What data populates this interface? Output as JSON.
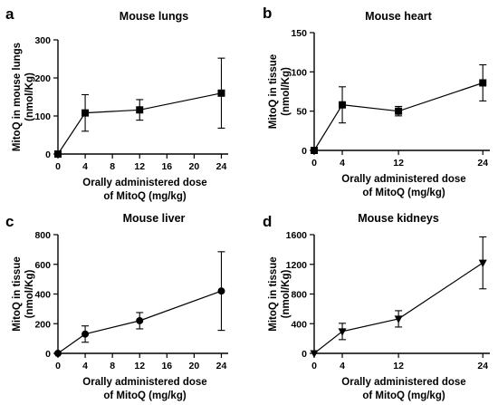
{
  "chart_data": [
    {
      "type": "line",
      "letter": "a",
      "title": "Mouse lungs",
      "ylabel": [
        "MitoQ in mouse lungs",
        "(nmol/Kg)"
      ],
      "xlabel": [
        "Orally administered dose",
        "of MitoQ (mg/kg)"
      ],
      "x": [
        0,
        4,
        12,
        24
      ],
      "y": [
        0,
        108,
        116,
        160
      ],
      "err": [
        0,
        48,
        27,
        92
      ],
      "marker": "square",
      "xlim": [
        0,
        25
      ],
      "xticks": [
        0,
        4,
        8,
        12,
        16,
        20,
        24
      ],
      "ylim": [
        0,
        300
      ],
      "yticks": [
        0,
        100,
        200,
        300
      ]
    },
    {
      "type": "line",
      "letter": "b",
      "title": "Mouse heart",
      "ylabel": [
        "MitoQ in tissue",
        "(nmol/Kg)"
      ],
      "xlabel": [
        "Orally administered dose",
        "of MitoQ (mg/kg)"
      ],
      "x": [
        0,
        4,
        12,
        24
      ],
      "y": [
        0,
        58,
        50,
        86
      ],
      "err": [
        0,
        23,
        6,
        23
      ],
      "marker": "square",
      "xlim": [
        0,
        25
      ],
      "xticks": [
        0,
        4,
        12,
        24
      ],
      "ylim": [
        0,
        150
      ],
      "yticks": [
        0,
        50,
        100,
        150
      ]
    },
    {
      "type": "line",
      "letter": "c",
      "title": "Mouse liver",
      "ylabel": [
        "MitoQ in tissue",
        "(nmol/Kg)"
      ],
      "xlabel": [
        "Orally administered dose",
        "of MitoQ (mg/kg)"
      ],
      "x": [
        0,
        4,
        12,
        24
      ],
      "y": [
        0,
        130,
        220,
        420
      ],
      "err": [
        0,
        55,
        55,
        265
      ],
      "marker": "circle",
      "xlim": [
        0,
        25
      ],
      "xticks": [
        0,
        4,
        8,
        12,
        16,
        20,
        24
      ],
      "ylim": [
        0,
        800
      ],
      "yticks": [
        0,
        200,
        400,
        600,
        800
      ]
    },
    {
      "type": "line",
      "letter": "d",
      "title": "Mouse kidneys",
      "ylabel": [
        "MitoQ in tissue",
        "(nmol/Kg)"
      ],
      "xlabel": [
        "Orally administered dose",
        "of MitoQ (mg/kg)"
      ],
      "x": [
        0,
        4,
        12,
        24
      ],
      "y": [
        0,
        295,
        465,
        1220
      ],
      "err": [
        0,
        110,
        110,
        350
      ],
      "marker": "triangle-down",
      "xlim": [
        0,
        25
      ],
      "xticks": [
        0,
        4,
        12,
        24
      ],
      "ylim": [
        0,
        1600
      ],
      "yticks": [
        0,
        400,
        800,
        1200,
        1600
      ]
    }
  ]
}
